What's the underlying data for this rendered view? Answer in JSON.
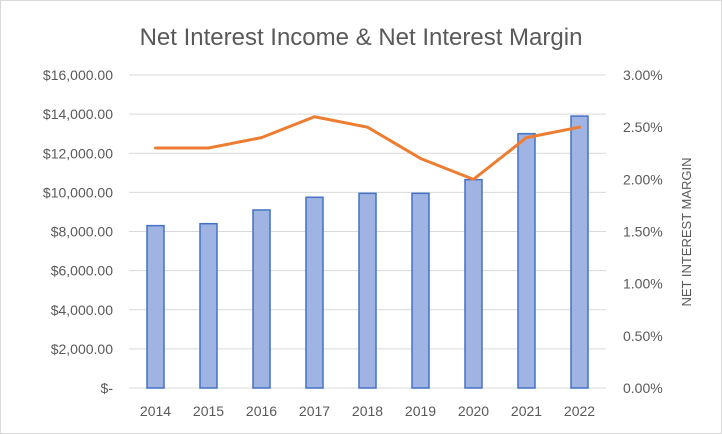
{
  "chart_data": {
    "type": "bar",
    "title": "Net Interest Income & Net Interest Margin",
    "categories": [
      "2014",
      "2015",
      "2016",
      "2017",
      "2018",
      "2019",
      "2020",
      "2021",
      "2022"
    ],
    "series": [
      {
        "type": "bar",
        "axis": "left",
        "color": "#4472c4",
        "values": [
          8300,
          8400,
          9100,
          9750,
          9950,
          9950,
          10650,
          13000,
          13900
        ]
      },
      {
        "type": "line",
        "axis": "right",
        "color": "#ed7d31",
        "values": [
          2.3,
          2.3,
          2.4,
          2.6,
          2.5,
          2.2,
          2.0,
          2.4,
          2.5
        ]
      }
    ],
    "y_left": {
      "label": "",
      "min": 0,
      "max": 16000,
      "step": 2000,
      "tick_labels": [
        "$-",
        "$2,000.00",
        "$4,000.00",
        "$6,000.00",
        "$8,000.00",
        "$10,000.00",
        "$12,000.00",
        "$14,000.00",
        "$16,000.00"
      ]
    },
    "y_right": {
      "label": "NET INTEREST MARGIN",
      "min": 0,
      "max": 3.0,
      "step": 0.5,
      "tick_labels": [
        "0.00%",
        "0.50%",
        "1.00%",
        "1.50%",
        "2.00%",
        "2.50%",
        "3.00%"
      ]
    },
    "grid": true,
    "legend": "none"
  }
}
